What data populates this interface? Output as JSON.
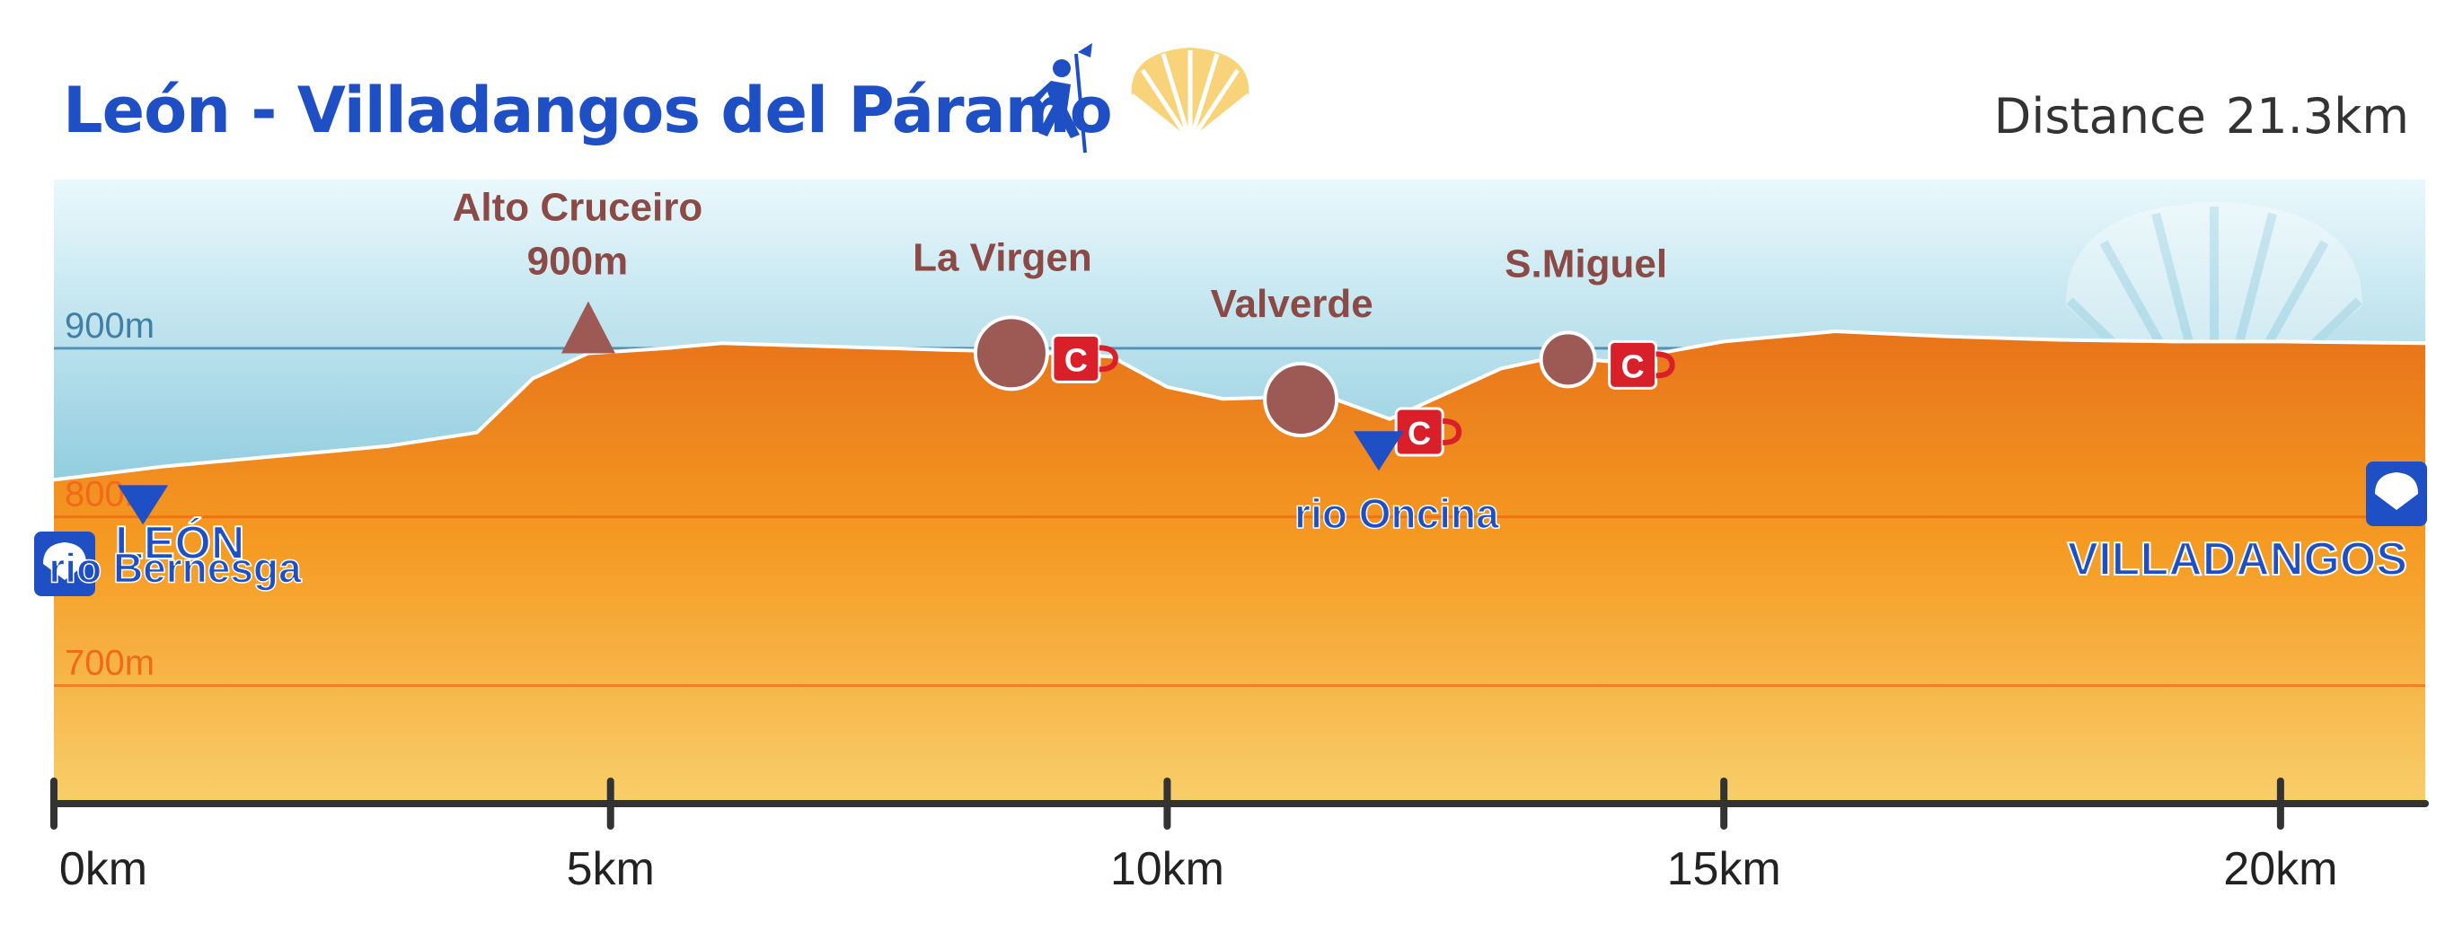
{
  "title": "León - Villadangos del Páramo",
  "distance_label": "Distance",
  "distance_value": "21.3km",
  "colors": {
    "title": "#1f4fc4",
    "terrain_top": "#e8781c",
    "terrain_bottom": "#f7c04a",
    "sky_top": "#e9f7fb",
    "sky_bottom": "#4aa3c2",
    "place_marker": "#9d5a55",
    "cafe": "#d81f2a",
    "river": "#1f4fc4"
  },
  "chart_data": {
    "type": "area",
    "title": "León - Villadangos del Páramo",
    "x_unit": "km",
    "y_unit": "m",
    "xlim": [
      0,
      21.3
    ],
    "ylim": [
      630,
      1000
    ],
    "x_ticks": [
      {
        "value": 0,
        "label": "0km"
      },
      {
        "value": 5,
        "label": "5km"
      },
      {
        "value": 10,
        "label": "10km"
      },
      {
        "value": 15,
        "label": "15km"
      },
      {
        "value": 20,
        "label": "20km"
      }
    ],
    "y_reference_lines": [
      {
        "value": 900,
        "label": "900m"
      },
      {
        "value": 800,
        "label": "800m"
      },
      {
        "value": 700,
        "label": "700m"
      }
    ],
    "elevation_profile": {
      "x": [
        0,
        1,
        2,
        3,
        3.8,
        4.3,
        4.8,
        5.5,
        6,
        7,
        8,
        8.7,
        9.5,
        10,
        10.5,
        11,
        11.5,
        12,
        12.5,
        13,
        13.5,
        14,
        14.5,
        15,
        16,
        17,
        18,
        19,
        20,
        21.3
      ],
      "y": [
        822,
        830,
        836,
        842,
        850,
        882,
        897,
        900,
        903,
        901,
        899,
        898,
        895,
        877,
        870,
        871,
        870,
        858,
        873,
        888,
        895,
        892,
        898,
        904,
        910,
        907,
        905,
        904,
        904,
        903
      ]
    },
    "places": [
      {
        "name": "LEÓN",
        "x": 0
      },
      {
        "name": "VILLADANGOS",
        "x": 21.3
      }
    ],
    "summit": {
      "name": "Alto Cruceiro",
      "elevation_label": "900m",
      "x": 4.8
    },
    "villages": [
      {
        "name": "La Virgen",
        "x": 8.6,
        "cafe": true
      },
      {
        "name": "Valverde",
        "x": 11.2,
        "cafe": true
      },
      {
        "name": "S.Miguel",
        "x": 13.6,
        "cafe": true
      }
    ],
    "cafe_label": "C",
    "rivers": [
      {
        "name": "rio Bernesga",
        "x": 0.8
      },
      {
        "name": "rio Oncina",
        "x": 11.9
      }
    ],
    "legend": "none",
    "grid": false
  }
}
